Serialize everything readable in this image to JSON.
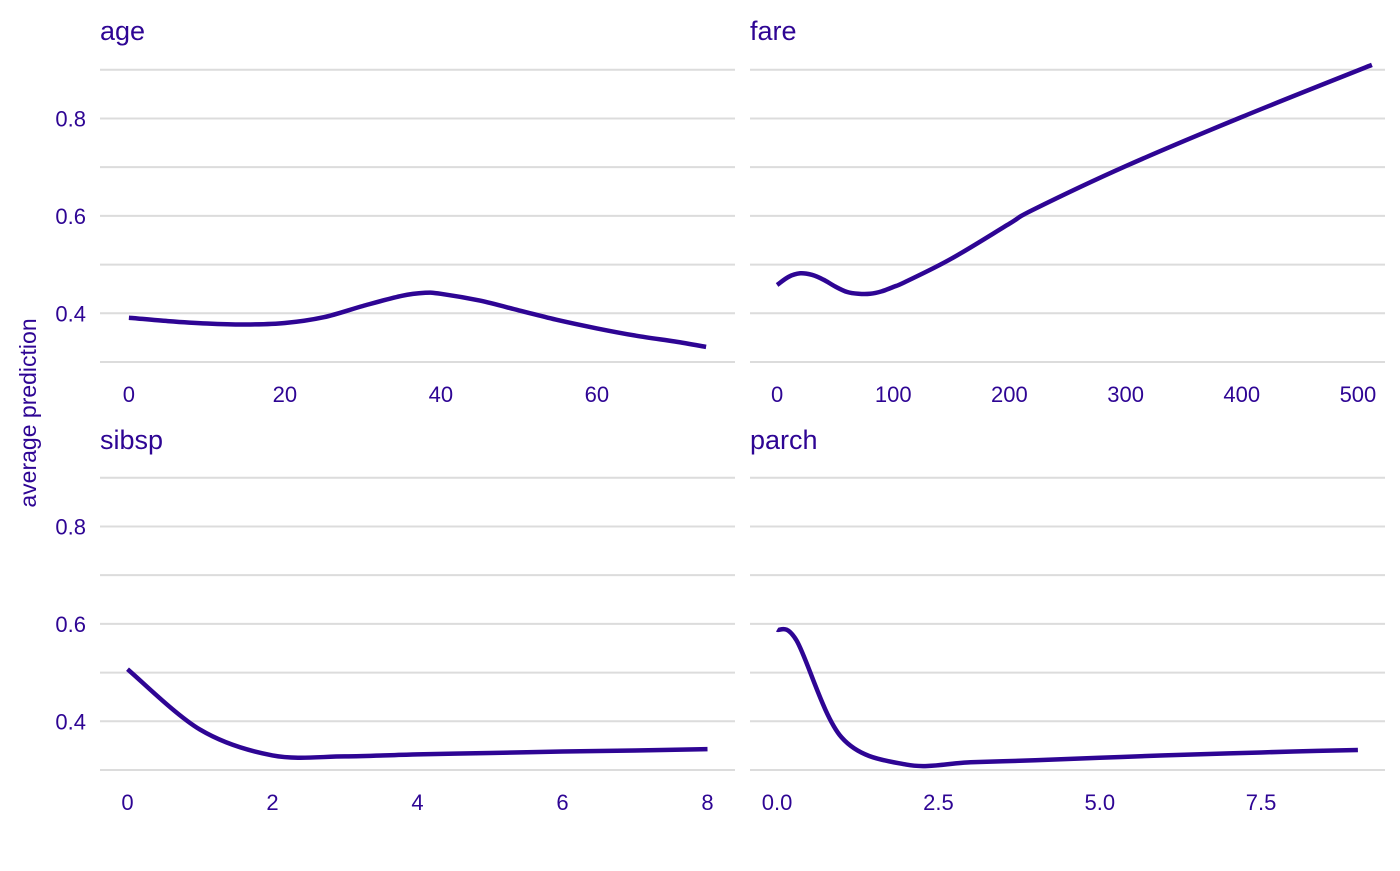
{
  "colors": {
    "line": "#2e0594",
    "text": "#2e0594",
    "grid": "#dcdcdc",
    "background": "#ffffff"
  },
  "chart_data": {
    "type": "line",
    "ylabel": "average prediction",
    "ylim": [
      0.3,
      0.92
    ],
    "yticks": [
      {
        "value": 0.4,
        "label": "0.4"
      },
      {
        "value": 0.6,
        "label": "0.6"
      },
      {
        "value": 0.8,
        "label": "0.8"
      }
    ],
    "y_minor_gridlines": [
      0.3,
      0.5,
      0.7,
      0.9
    ],
    "grid": true,
    "legend": "none",
    "panels": [
      {
        "title": "age",
        "xlim": [
          -3.7,
          77.7
        ],
        "xticks": [
          {
            "value": 0,
            "label": "0"
          },
          {
            "value": 20,
            "label": "20"
          },
          {
            "value": 40,
            "label": "40"
          },
          {
            "value": 60,
            "label": "60"
          }
        ],
        "x": [
          0,
          5,
          10,
          15,
          20,
          25,
          30,
          35,
          38,
          40,
          45,
          50,
          55,
          60,
          65,
          70,
          74
        ],
        "y": [
          0.391,
          0.384,
          0.379,
          0.377,
          0.38,
          0.392,
          0.415,
          0.436,
          0.442,
          0.44,
          0.426,
          0.406,
          0.386,
          0.369,
          0.354,
          0.342,
          0.331
        ]
      },
      {
        "title": "fare",
        "xlim": [
          -23.3,
          523.3
        ],
        "xticks": [
          {
            "value": 0,
            "label": "0"
          },
          {
            "value": 100,
            "label": "100"
          },
          {
            "value": 200,
            "label": "200"
          },
          {
            "value": 300,
            "label": "300"
          },
          {
            "value": 400,
            "label": "400"
          },
          {
            "value": 500,
            "label": "500"
          }
        ],
        "x": [
          0,
          10,
          20,
          30,
          40,
          50,
          60,
          70,
          80,
          90,
          100,
          110,
          150,
          200,
          220,
          300,
          400,
          512
        ],
        "y": [
          0.458,
          0.475,
          0.482,
          0.479,
          0.469,
          0.455,
          0.444,
          0.44,
          0.44,
          0.445,
          0.454,
          0.464,
          0.512,
          0.584,
          0.612,
          0.702,
          0.803,
          0.91
        ]
      },
      {
        "title": "sibsp",
        "xlim": [
          -0.38,
          8.38
        ],
        "xticks": [
          {
            "value": 0,
            "label": "0"
          },
          {
            "value": 2,
            "label": "2"
          },
          {
            "value": 4,
            "label": "4"
          },
          {
            "value": 6,
            "label": "6"
          },
          {
            "value": 8,
            "label": "8"
          }
        ],
        "x": [
          0,
          1,
          2,
          3,
          4,
          5,
          6,
          7,
          8
        ],
        "y": [
          0.507,
          0.383,
          0.33,
          0.328,
          0.332,
          0.335,
          0.338,
          0.34,
          0.343
        ]
      },
      {
        "title": "parch",
        "xlim": [
          -0.42,
          9.42
        ],
        "xticks": [
          {
            "value": 0,
            "label": "0.0"
          },
          {
            "value": 2.5,
            "label": "2.5"
          },
          {
            "value": 5,
            "label": "5.0"
          },
          {
            "value": 7.5,
            "label": "7.5"
          }
        ],
        "x": [
          0,
          0.3,
          1,
          2,
          3,
          4,
          5,
          6,
          7,
          8,
          9
        ],
        "y": [
          0.588,
          0.566,
          0.367,
          0.311,
          0.316,
          0.32,
          0.325,
          0.33,
          0.334,
          0.338,
          0.341
        ]
      }
    ]
  }
}
